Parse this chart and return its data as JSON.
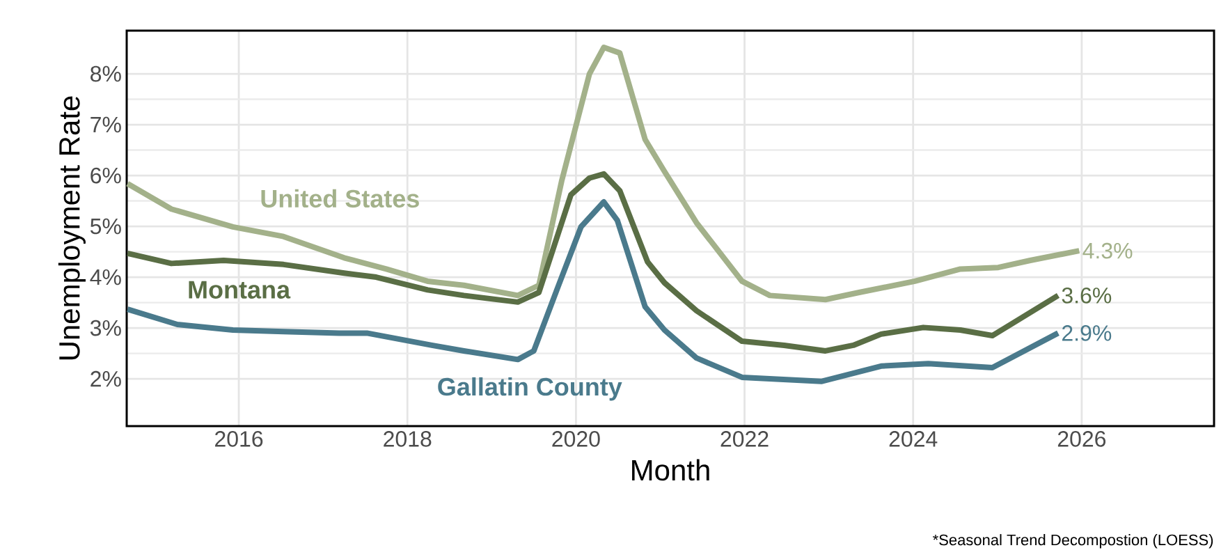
{
  "chart_data": {
    "type": "line",
    "xlabel": "Month",
    "ylabel": "Unemployment Rate",
    "xlim": [
      2014.67,
      2027.57
    ],
    "ylim": [
      1.07,
      8.85
    ],
    "xticks": [
      2016,
      2018,
      2020,
      2022,
      2024,
      2026
    ],
    "yticks": [
      {
        "value": 2,
        "label": "2%"
      },
      {
        "value": 3,
        "label": "3%"
      },
      {
        "value": 4,
        "label": "4%"
      },
      {
        "value": 5,
        "label": "5%"
      },
      {
        "value": 6,
        "label": "6%"
      },
      {
        "value": 7,
        "label": "7%"
      },
      {
        "value": 8,
        "label": "8%"
      }
    ],
    "grid": true,
    "legend": false,
    "marker": "none",
    "line_style": "solid",
    "series": [
      {
        "name": "United States",
        "color": "#a3b18a",
        "x": [
          2014.68,
          2015.2,
          2015.93,
          2016.53,
          2017.25,
          2017.75,
          2018.24,
          2018.67,
          2019.31,
          2019.56,
          2019.83,
          2020.16,
          2020.33,
          2020.52,
          2020.82,
          2021.05,
          2021.43,
          2021.97,
          2022.3,
          2022.96,
          2023.36,
          2024.02,
          2024.56,
          2025.01,
          2025.39,
          2025.97
        ],
        "values": [
          5.84,
          5.34,
          4.99,
          4.8,
          4.38,
          4.16,
          3.92,
          3.84,
          3.64,
          3.84,
          5.89,
          8.0,
          8.52,
          8.41,
          6.71,
          6.08,
          5.07,
          3.92,
          3.64,
          3.56,
          3.7,
          3.92,
          4.16,
          4.19,
          4.33,
          4.52
        ]
      },
      {
        "name": "Montana",
        "color": "#5a6e45",
        "x": [
          2014.68,
          2015.2,
          2015.82,
          2016.53,
          2017.25,
          2017.63,
          2018.24,
          2018.67,
          2019.31,
          2019.56,
          2019.94,
          2020.16,
          2020.33,
          2020.52,
          2020.85,
          2021.05,
          2021.43,
          2021.97,
          2022.47,
          2022.96,
          2023.29,
          2023.62,
          2024.12,
          2024.56,
          2024.94,
          2025.72
        ],
        "values": [
          4.47,
          4.27,
          4.33,
          4.25,
          4.08,
          4.0,
          3.75,
          3.64,
          3.51,
          3.7,
          5.62,
          5.95,
          6.03,
          5.7,
          4.3,
          3.89,
          3.34,
          2.74,
          2.66,
          2.55,
          2.66,
          2.88,
          3.01,
          2.96,
          2.85,
          3.64
        ]
      },
      {
        "name": "Gallatin County",
        "color": "#4a7a8c",
        "x": [
          2014.68,
          2015.27,
          2015.93,
          2016.53,
          2017.19,
          2017.52,
          2018.29,
          2018.67,
          2019.31,
          2019.5,
          2019.78,
          2020.06,
          2020.33,
          2020.49,
          2020.82,
          2021.05,
          2021.43,
          2021.97,
          2022.91,
          2023.62,
          2024.18,
          2024.94,
          2025.72
        ],
        "values": [
          3.37,
          3.07,
          2.96,
          2.93,
          2.9,
          2.9,
          2.66,
          2.55,
          2.38,
          2.55,
          3.78,
          4.99,
          5.48,
          5.12,
          3.42,
          2.96,
          2.41,
          2.03,
          1.95,
          2.25,
          2.3,
          2.22,
          2.9
        ]
      }
    ],
    "annotations": [
      "4.3%",
      "3.6%",
      "2.9%",
      "*Seasonal Trend Decompostion (LOESS)"
    ]
  }
}
